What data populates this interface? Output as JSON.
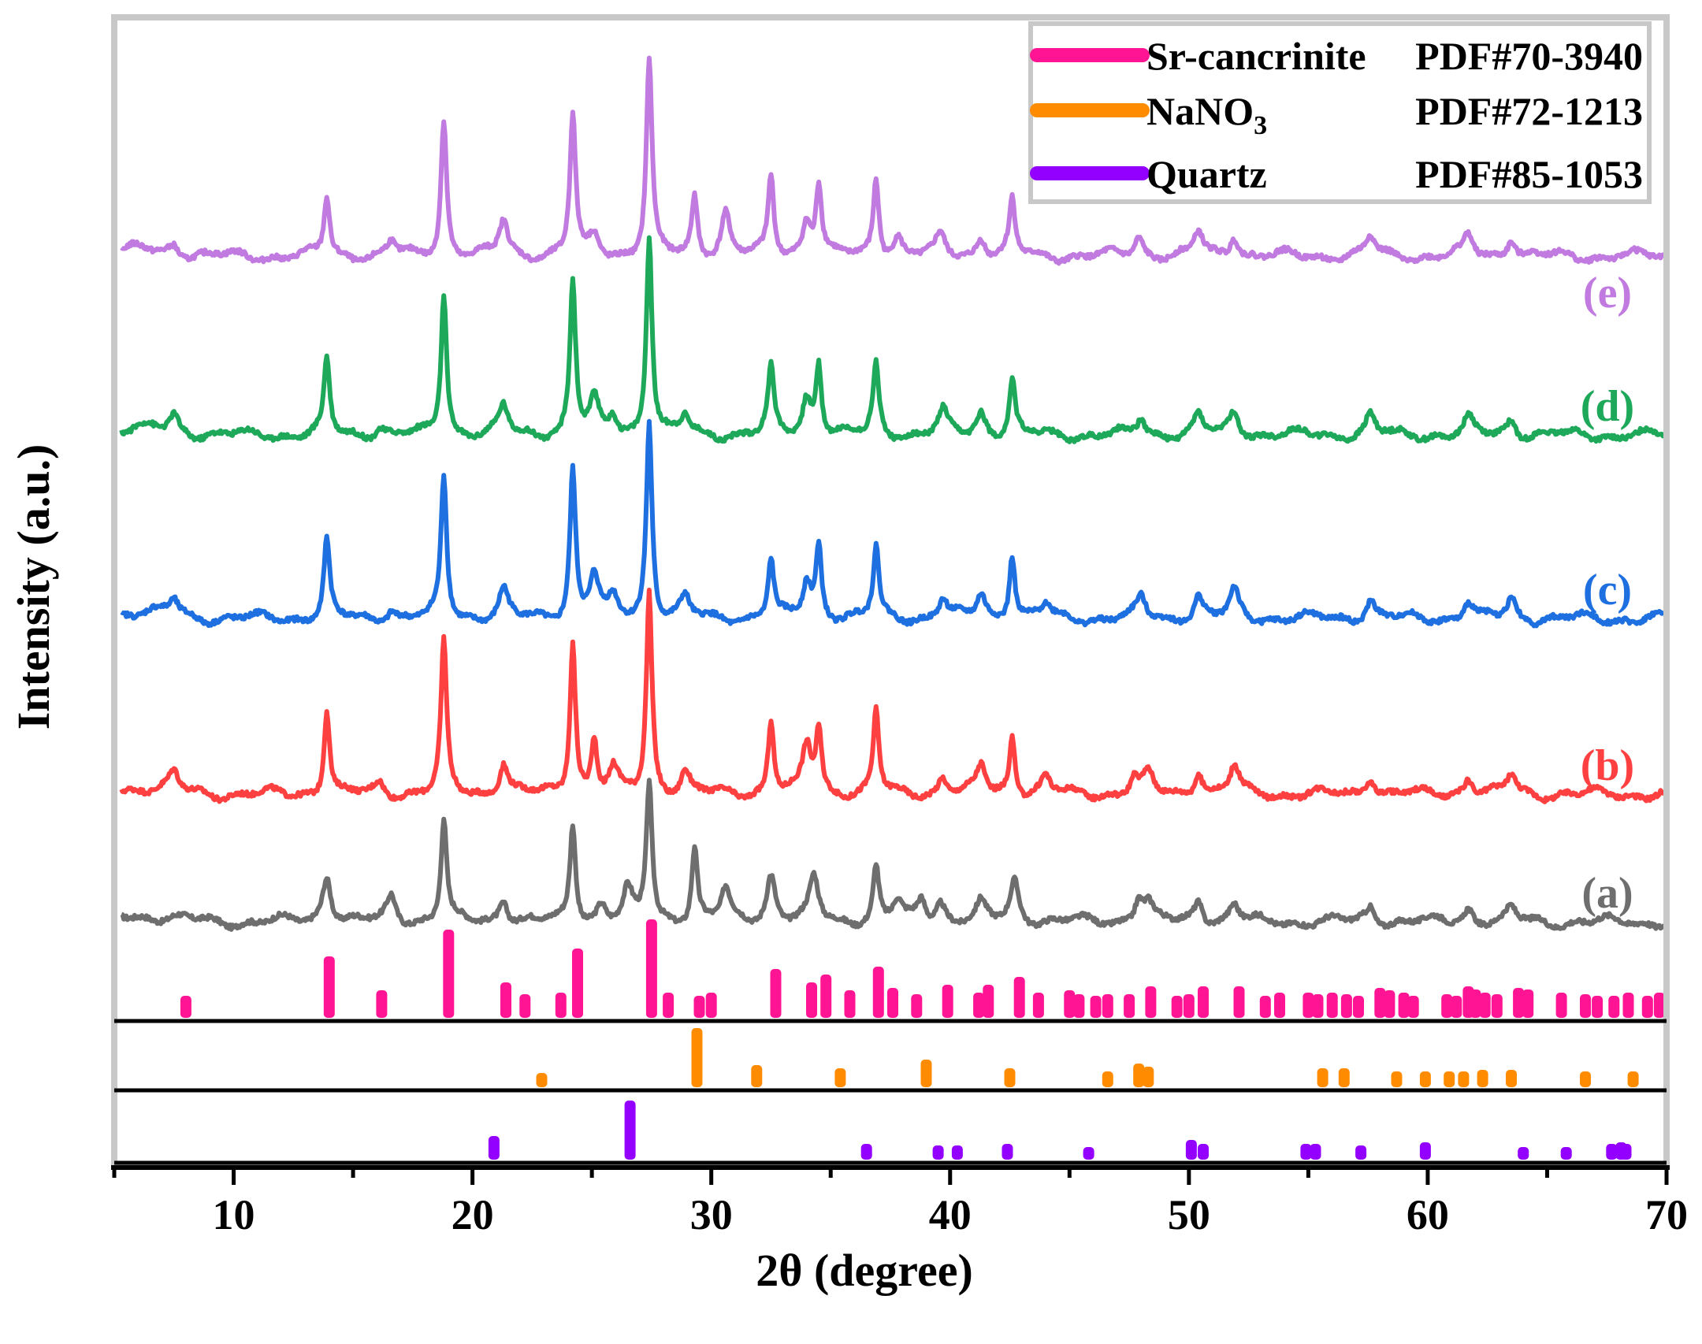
{
  "chart_data": {
    "type": "line",
    "xlabel": "2θ (degree)",
    "ylabel": "Intensity (a.u.)",
    "xlim": [
      5,
      70
    ],
    "x_ticks": [
      10,
      20,
      30,
      40,
      50,
      60,
      70
    ],
    "grid": false,
    "legend_position": "top-right",
    "legend": [
      {
        "name": "Sr-cancrinite",
        "pdf": "PDF#70-3940",
        "color": "#ff1493"
      },
      {
        "name_main": "NaNO",
        "name_sub": "3",
        "pdf": "PDF#72-1213",
        "color": "#ff8c00"
      },
      {
        "name": "Quartz",
        "pdf": "PDF#85-1053",
        "color": "#9400ff"
      }
    ],
    "series": [
      {
        "label": "(a)",
        "color": "#6e6e6e",
        "peaks": [
          [
            13.9,
            60
          ],
          [
            16.6,
            32
          ],
          [
            18.8,
            130
          ],
          [
            21.3,
            30
          ],
          [
            24.2,
            125
          ],
          [
            25.4,
            22
          ],
          [
            26.5,
            38
          ],
          [
            27.4,
            178
          ],
          [
            29.3,
            95
          ],
          [
            30.6,
            40
          ],
          [
            32.5,
            60
          ],
          [
            34.3,
            55
          ],
          [
            36.9,
            70
          ],
          [
            37.8,
            25
          ],
          [
            38.8,
            28
          ],
          [
            39.6,
            25
          ],
          [
            41.3,
            22
          ],
          [
            42.7,
            52
          ],
          [
            47.9,
            30
          ],
          [
            48.3,
            20
          ],
          [
            50.4,
            28
          ],
          [
            51.9,
            22
          ],
          [
            57.6,
            20
          ],
          [
            61.7,
            18
          ],
          [
            63.5,
            16
          ]
        ]
      },
      {
        "label": "(b)",
        "color": "#ff4040",
        "peaks": [
          [
            7.5,
            22
          ],
          [
            13.9,
            110
          ],
          [
            16.1,
            14
          ],
          [
            18.8,
            190
          ],
          [
            21.3,
            40
          ],
          [
            24.2,
            195
          ],
          [
            25.1,
            68
          ],
          [
            25.9,
            30
          ],
          [
            27.4,
            255
          ],
          [
            28.9,
            28
          ],
          [
            32.5,
            95
          ],
          [
            34.0,
            60
          ],
          [
            34.5,
            80
          ],
          [
            36.9,
            105
          ],
          [
            39.7,
            22
          ],
          [
            41.3,
            35
          ],
          [
            42.6,
            75
          ],
          [
            44.0,
            22
          ],
          [
            47.7,
            20
          ],
          [
            48.3,
            25
          ],
          [
            50.4,
            30
          ],
          [
            51.9,
            35
          ],
          [
            57.6,
            25
          ],
          [
            61.7,
            22
          ],
          [
            63.5,
            25
          ]
        ]
      },
      {
        "label": "(c)",
        "color": "#1e6fe0",
        "peaks": [
          [
            7.5,
            20
          ],
          [
            13.9,
            100
          ],
          [
            16.6,
            12
          ],
          [
            18.8,
            180
          ],
          [
            21.3,
            35
          ],
          [
            24.2,
            190
          ],
          [
            25.1,
            55
          ],
          [
            25.9,
            22
          ],
          [
            27.4,
            250
          ],
          [
            28.9,
            25
          ],
          [
            32.5,
            75
          ],
          [
            34.0,
            45
          ],
          [
            34.5,
            90
          ],
          [
            36.9,
            90
          ],
          [
            39.7,
            25
          ],
          [
            41.3,
            32
          ],
          [
            42.6,
            85
          ],
          [
            44.0,
            18
          ],
          [
            48.0,
            25
          ],
          [
            50.4,
            28
          ],
          [
            51.9,
            35
          ],
          [
            57.6,
            25
          ],
          [
            61.7,
            22
          ],
          [
            63.5,
            25
          ]
        ]
      },
      {
        "label": "(d)",
        "color": "#1ea85a",
        "peaks": [
          [
            7.5,
            22
          ],
          [
            13.9,
            95
          ],
          [
            16.1,
            12
          ],
          [
            18.8,
            180
          ],
          [
            21.3,
            35
          ],
          [
            24.2,
            195
          ],
          [
            25.1,
            40
          ],
          [
            25.9,
            22
          ],
          [
            27.4,
            255
          ],
          [
            28.9,
            22
          ],
          [
            32.5,
            85
          ],
          [
            34.0,
            45
          ],
          [
            34.5,
            90
          ],
          [
            36.9,
            90
          ],
          [
            39.7,
            28
          ],
          [
            41.3,
            30
          ],
          [
            42.6,
            70
          ],
          [
            48.0,
            20
          ],
          [
            50.4,
            25
          ],
          [
            51.9,
            30
          ],
          [
            57.6,
            25
          ],
          [
            61.7,
            20
          ],
          [
            63.5,
            22
          ]
        ]
      },
      {
        "label": "(e)",
        "color": "#c07ae0",
        "peaks": [
          [
            7.5,
            12
          ],
          [
            13.9,
            75
          ],
          [
            16.6,
            18
          ],
          [
            18.8,
            175
          ],
          [
            21.3,
            45
          ],
          [
            24.2,
            180
          ],
          [
            25.1,
            25
          ],
          [
            27.4,
            250
          ],
          [
            29.3,
            75
          ],
          [
            30.6,
            55
          ],
          [
            32.5,
            100
          ],
          [
            34.0,
            45
          ],
          [
            34.5,
            90
          ],
          [
            36.9,
            100
          ],
          [
            37.8,
            25
          ],
          [
            39.6,
            25
          ],
          [
            41.3,
            25
          ],
          [
            42.6,
            70
          ],
          [
            47.9,
            25
          ],
          [
            50.4,
            30
          ],
          [
            51.9,
            28
          ],
          [
            57.6,
            25
          ],
          [
            61.7,
            25
          ],
          [
            63.5,
            25
          ]
        ]
      }
    ],
    "reference_patterns": [
      {
        "name": "Sr-cancrinite",
        "color": "#ff1493",
        "sticks": [
          [
            8.0,
            28
          ],
          [
            14.0,
            78
          ],
          [
            16.2,
            35
          ],
          [
            19.0,
            112
          ],
          [
            21.4,
            45
          ],
          [
            22.2,
            30
          ],
          [
            23.7,
            32
          ],
          [
            24.4,
            88
          ],
          [
            27.5,
            125
          ],
          [
            28.2,
            32
          ],
          [
            29.5,
            28
          ],
          [
            30.0,
            32
          ],
          [
            32.7,
            62
          ],
          [
            34.2,
            45
          ],
          [
            34.8,
            55
          ],
          [
            35.8,
            35
          ],
          [
            37.0,
            65
          ],
          [
            37.6,
            38
          ],
          [
            38.6,
            30
          ],
          [
            39.9,
            42
          ],
          [
            41.2,
            32
          ],
          [
            41.6,
            42
          ],
          [
            42.9,
            52
          ],
          [
            43.7,
            32
          ],
          [
            45.0,
            35
          ],
          [
            45.4,
            30
          ],
          [
            46.1,
            28
          ],
          [
            46.6,
            30
          ],
          [
            47.5,
            30
          ],
          [
            48.4,
            40
          ],
          [
            49.5,
            28
          ],
          [
            50.0,
            30
          ],
          [
            50.6,
            40
          ],
          [
            52.1,
            40
          ],
          [
            53.2,
            28
          ],
          [
            53.8,
            32
          ],
          [
            55.0,
            32
          ],
          [
            55.4,
            30
          ],
          [
            56.0,
            32
          ],
          [
            56.6,
            30
          ],
          [
            57.1,
            28
          ],
          [
            58.0,
            38
          ],
          [
            58.4,
            35
          ],
          [
            59.0,
            32
          ],
          [
            59.4,
            28
          ],
          [
            60.8,
            30
          ],
          [
            61.2,
            28
          ],
          [
            61.7,
            40
          ],
          [
            62.0,
            36
          ],
          [
            62.4,
            32
          ],
          [
            62.9,
            30
          ],
          [
            63.8,
            38
          ],
          [
            64.2,
            36
          ],
          [
            65.6,
            32
          ],
          [
            66.6,
            30
          ],
          [
            67.1,
            28
          ],
          [
            67.8,
            28
          ],
          [
            68.4,
            32
          ],
          [
            69.2,
            28
          ],
          [
            69.7,
            32
          ]
        ]
      },
      {
        "name": "NaNO3",
        "color": "#ff8c00",
        "sticks": [
          [
            22.9,
            18
          ],
          [
            29.4,
            75
          ],
          [
            31.9,
            28
          ],
          [
            35.4,
            24
          ],
          [
            39.0,
            35
          ],
          [
            42.5,
            24
          ],
          [
            46.6,
            20
          ],
          [
            47.9,
            30
          ],
          [
            48.3,
            26
          ],
          [
            55.6,
            24
          ],
          [
            56.5,
            24
          ],
          [
            58.7,
            20
          ],
          [
            59.9,
            20
          ],
          [
            60.9,
            20
          ],
          [
            61.5,
            20
          ],
          [
            62.3,
            22
          ],
          [
            63.5,
            22
          ],
          [
            66.6,
            20
          ],
          [
            68.6,
            20
          ]
        ]
      },
      {
        "name": "Quartz",
        "color": "#9400ff",
        "sticks": [
          [
            20.9,
            30
          ],
          [
            26.6,
            75
          ],
          [
            36.5,
            20
          ],
          [
            39.5,
            18
          ],
          [
            40.3,
            18
          ],
          [
            42.4,
            20
          ],
          [
            45.8,
            16
          ],
          [
            50.1,
            25
          ],
          [
            50.6,
            20
          ],
          [
            54.9,
            20
          ],
          [
            55.3,
            20
          ],
          [
            57.2,
            18
          ],
          [
            59.9,
            22
          ],
          [
            64.0,
            16
          ],
          [
            65.8,
            16
          ],
          [
            67.7,
            20
          ],
          [
            68.1,
            22
          ],
          [
            68.3,
            20
          ]
        ]
      }
    ]
  }
}
